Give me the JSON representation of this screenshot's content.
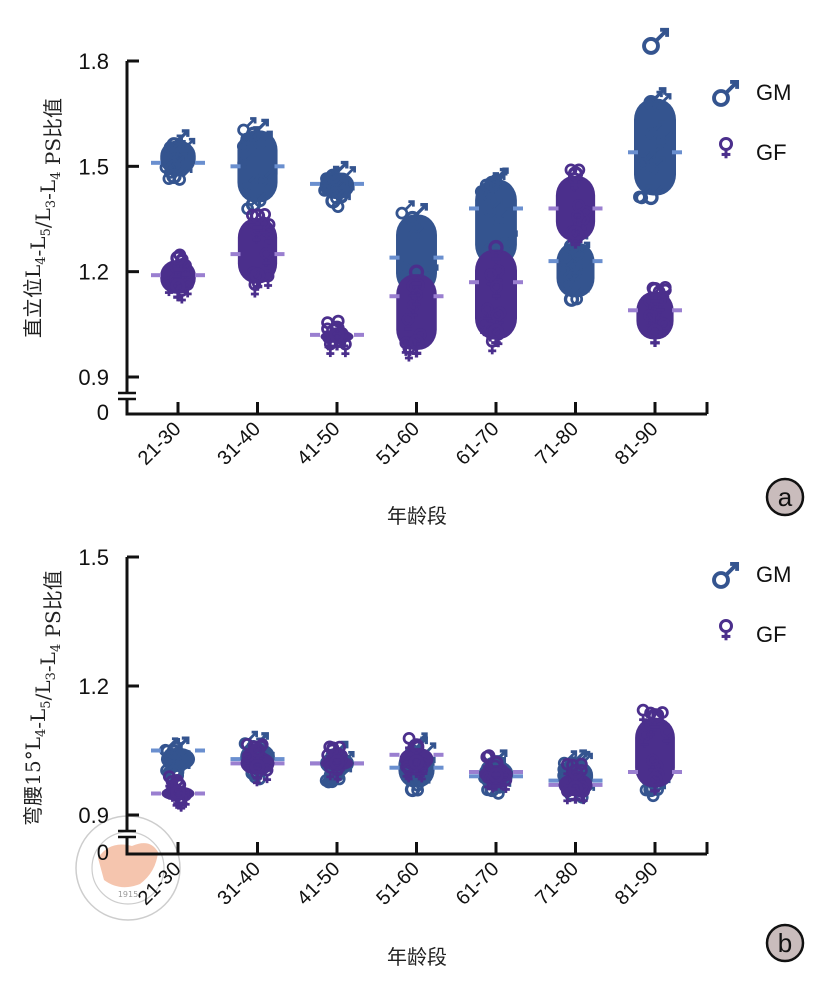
{
  "colors": {
    "male": "#34548f",
    "female": "#4b2f8c",
    "male_mean": "#6a8fcf",
    "female_mean": "#9a7fd0",
    "axis": "#111111",
    "badge_fill": "#c9bcbc",
    "watermark_fill": "#f2b79a",
    "watermark_ring": "#b8b8b8"
  },
  "legend": {
    "male": {
      "symbol": "♂",
      "label": "GM"
    },
    "female": {
      "symbol": "♀",
      "label": "GF"
    }
  },
  "watermark": {
    "year": "1915",
    "text": "CHINESE MEDICAL ASSOCIATION"
  },
  "chart_data": [
    {
      "id": "a",
      "type": "scatter",
      "panel_label": "a",
      "title": "",
      "xlabel": "年龄段",
      "ylabel": "直立位L4-L5/L3-L4 PS比值",
      "ylabel_parts": [
        {
          "t": "直立位L"
        },
        {
          "t": "4",
          "sub": true
        },
        {
          "t": "-L"
        },
        {
          "t": "5",
          "sub": true
        },
        {
          "t": "/L"
        },
        {
          "t": "3",
          "sub": true
        },
        {
          "t": "-L"
        },
        {
          "t": "4",
          "sub": true
        },
        {
          "t": " PS比值"
        }
      ],
      "categories": [
        "21-30",
        "31-40",
        "41-50",
        "51-60",
        "61-70",
        "71-80",
        "81-90"
      ],
      "ylim": [
        0.9,
        1.8
      ],
      "yticks": [
        0.9,
        1.2,
        1.5,
        1.8
      ],
      "ytick_labels": [
        "0.9",
        "1.2",
        "1.5",
        "1.8"
      ],
      "axis_break": true,
      "axis_zero_label": "0",
      "grid": false,
      "legend_position": "top-right",
      "series": [
        {
          "name": "GM",
          "marker": "male",
          "mean": [
            1.51,
            1.5,
            1.45,
            1.24,
            1.38,
            1.23,
            1.54
          ],
          "min": [
            1.46,
            1.38,
            1.39,
            1.12,
            1.2,
            1.11,
            1.4
          ],
          "max": [
            1.59,
            1.62,
            1.5,
            1.38,
            1.48,
            1.3,
            1.71
          ],
          "outliers": [
            [],
            [],
            [],
            [],
            [],
            [],
            [
              1.86
            ]
          ]
        },
        {
          "name": "GF",
          "marker": "female",
          "mean": [
            1.19,
            1.25,
            1.02,
            1.13,
            1.17,
            1.38,
            1.09
          ],
          "min": [
            1.12,
            1.15,
            0.98,
            0.96,
            0.99,
            1.27,
            0.99
          ],
          "max": [
            1.25,
            1.37,
            1.05,
            1.21,
            1.28,
            1.49,
            1.16
          ],
          "outliers": [
            [],
            [],
            [],
            [],
            [],
            [],
            []
          ]
        }
      ]
    },
    {
      "id": "b",
      "type": "scatter",
      "panel_label": "b",
      "title": "",
      "xlabel": "年龄段",
      "ylabel": "弯腰15°L4-L5/L3-L4 PS比值",
      "ylabel_parts": [
        {
          "t": "弯腰15°L"
        },
        {
          "t": "4",
          "sub": true
        },
        {
          "t": "-L"
        },
        {
          "t": "5",
          "sub": true
        },
        {
          "t": "/L"
        },
        {
          "t": "3",
          "sub": true
        },
        {
          "t": "-L"
        },
        {
          "t": "4",
          "sub": true
        },
        {
          "t": " PS比值"
        }
      ],
      "categories": [
        "21-30",
        "31-40",
        "41-50",
        "51-60",
        "61-70",
        "71-80",
        "81-90"
      ],
      "ylim": [
        0.9,
        1.5
      ],
      "yticks": [
        0.9,
        1.2,
        1.5
      ],
      "ytick_labels": [
        "0.9",
        "1.2",
        "1.5"
      ],
      "axis_break": true,
      "axis_zero_label": "0",
      "grid": false,
      "legend_position": "top-right",
      "series": [
        {
          "name": "GM",
          "marker": "male",
          "mean": [
            1.05,
            1.03,
            1.02,
            1.01,
            0.99,
            0.98,
            1.0
          ],
          "min": [
            0.99,
            0.99,
            0.98,
            0.95,
            0.95,
            0.94,
            0.95
          ],
          "max": [
            1.07,
            1.08,
            1.06,
            1.07,
            1.04,
            1.04,
            1.04
          ],
          "outliers": [
            [],
            [],
            [],
            [],
            [],
            [],
            []
          ]
        },
        {
          "name": "GF",
          "marker": "female",
          "mean": [
            0.95,
            1.02,
            1.02,
            1.04,
            1.0,
            0.97,
            1.0
          ],
          "min": [
            0.92,
            0.98,
            0.99,
            0.99,
            0.96,
            0.93,
            0.95
          ],
          "max": [
            0.98,
            1.06,
            1.05,
            1.07,
            1.03,
            1.01,
            1.14
          ],
          "outliers": [
            [],
            [],
            [],
            [],
            [],
            [],
            []
          ]
        }
      ]
    }
  ]
}
